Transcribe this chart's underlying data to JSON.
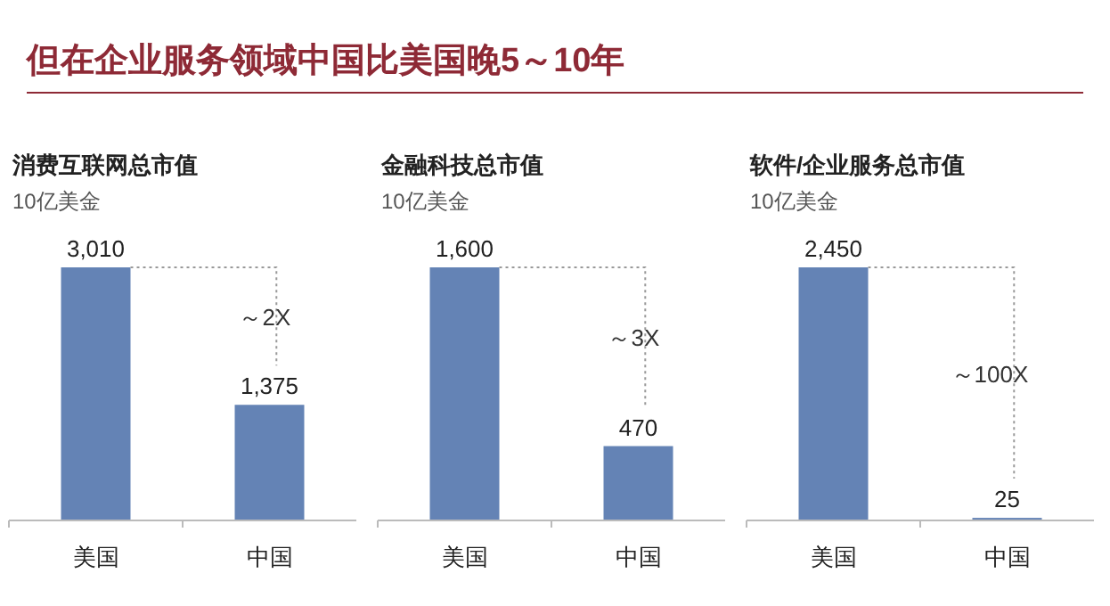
{
  "chart_data": [
    {
      "type": "other",
      "title": "但在企业服务领域中国比美国晚5～10年"
    },
    {
      "type": "bar",
      "title": "消费互联网总市值",
      "subtitle": "10亿美金",
      "categories": [
        "美国",
        "中国"
      ],
      "values": [
        3010,
        1375
      ],
      "value_labels": [
        "3,010",
        "1,375"
      ],
      "color": "#6483b5",
      "annotations": [
        "～2X"
      ]
    },
    {
      "type": "bar",
      "title": "金融科技总市值",
      "subtitle": "10亿美金",
      "categories": [
        "美国",
        "中国"
      ],
      "values": [
        1600,
        470
      ],
      "value_labels": [
        "1,600",
        "470"
      ],
      "color": "#6483b5",
      "annotations": [
        "～3X"
      ]
    },
    {
      "type": "bar",
      "title": "软件/企业服务总市值",
      "subtitle": "10亿美金",
      "categories": [
        "美国",
        "中国"
      ],
      "values": [
        2450,
        25
      ],
      "value_labels": [
        "2,450",
        "25"
      ],
      "color": "#6483b5",
      "annotations": [
        "～100X"
      ]
    }
  ]
}
